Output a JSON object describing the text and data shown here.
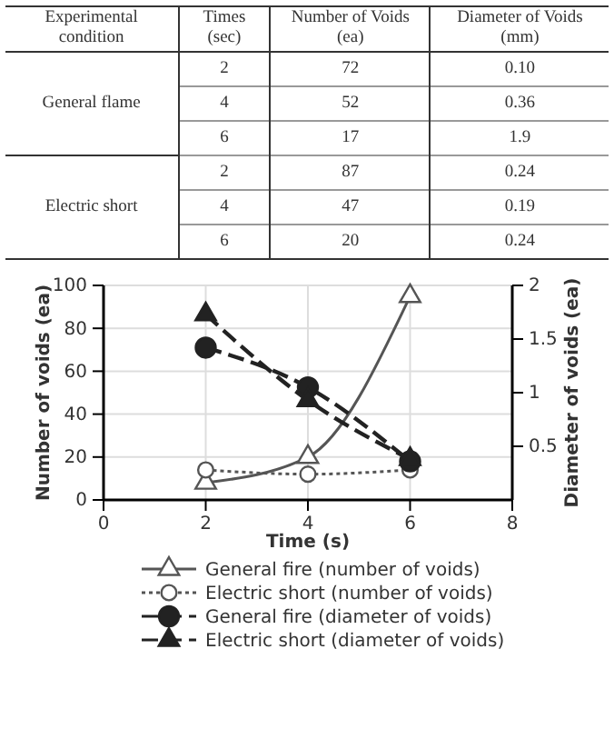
{
  "chart_data": [
    {
      "type": "other",
      "categories": [
        "Experimental condition",
        "Times (sec)",
        "Number of Voids (ea)",
        "Diameter of Voids (mm)"
      ],
      "y_categories": [
        "General flame",
        "Electric short"
      ],
      "cell_labels": [
        [
          "2",
          "72",
          "0.10"
        ],
        [
          "4",
          "52",
          "0.36"
        ],
        [
          "6",
          "17",
          "1.9"
        ],
        [
          "2",
          "87",
          "0.24"
        ],
        [
          "4",
          "47",
          "0.19"
        ],
        [
          "6",
          "20",
          "0.24"
        ]
      ]
    },
    {
      "type": "line",
      "xlabel": "Time  (s)",
      "ylabel": "Number of voids (ea)",
      "y2label": "Diameter of voids (ea)",
      "x": [
        2,
        4,
        6
      ],
      "xlim": [
        0,
        8
      ],
      "xticks": [
        0,
        2,
        4,
        6,
        8
      ],
      "ylim": [
        0,
        100
      ],
      "yticks": [
        0,
        20,
        40,
        60,
        80,
        100
      ],
      "y2lim": [
        0,
        2
      ],
      "y2ticks": [
        0.5,
        1,
        1.5,
        2
      ],
      "grid": true,
      "legend": "bottom",
      "series": [
        {
          "name": "General fire (number of voids)",
          "color": "#555555",
          "values": [
            8,
            20,
            95
          ],
          "marker": "triangle",
          "line_style": "solid"
        },
        {
          "name": "Electric short (number of voids)",
          "color": "#555555",
          "values": [
            14,
            12,
            14
          ],
          "marker": "circle",
          "line_style": "dotted"
        },
        {
          "name": "General fire (diameter of voids)",
          "color": "#222222",
          "values": [
            1.42,
            1.05,
            0.36
          ],
          "marker": "circle",
          "line_style": "dashed",
          "axis": "y2"
        },
        {
          "name": "Electric short (diameter of voids)",
          "color": "#222222",
          "values": [
            1.73,
            0.93,
            0.38
          ],
          "marker": "triangle",
          "line_style": "dashed",
          "axis": "y2"
        }
      ]
    }
  ]
}
